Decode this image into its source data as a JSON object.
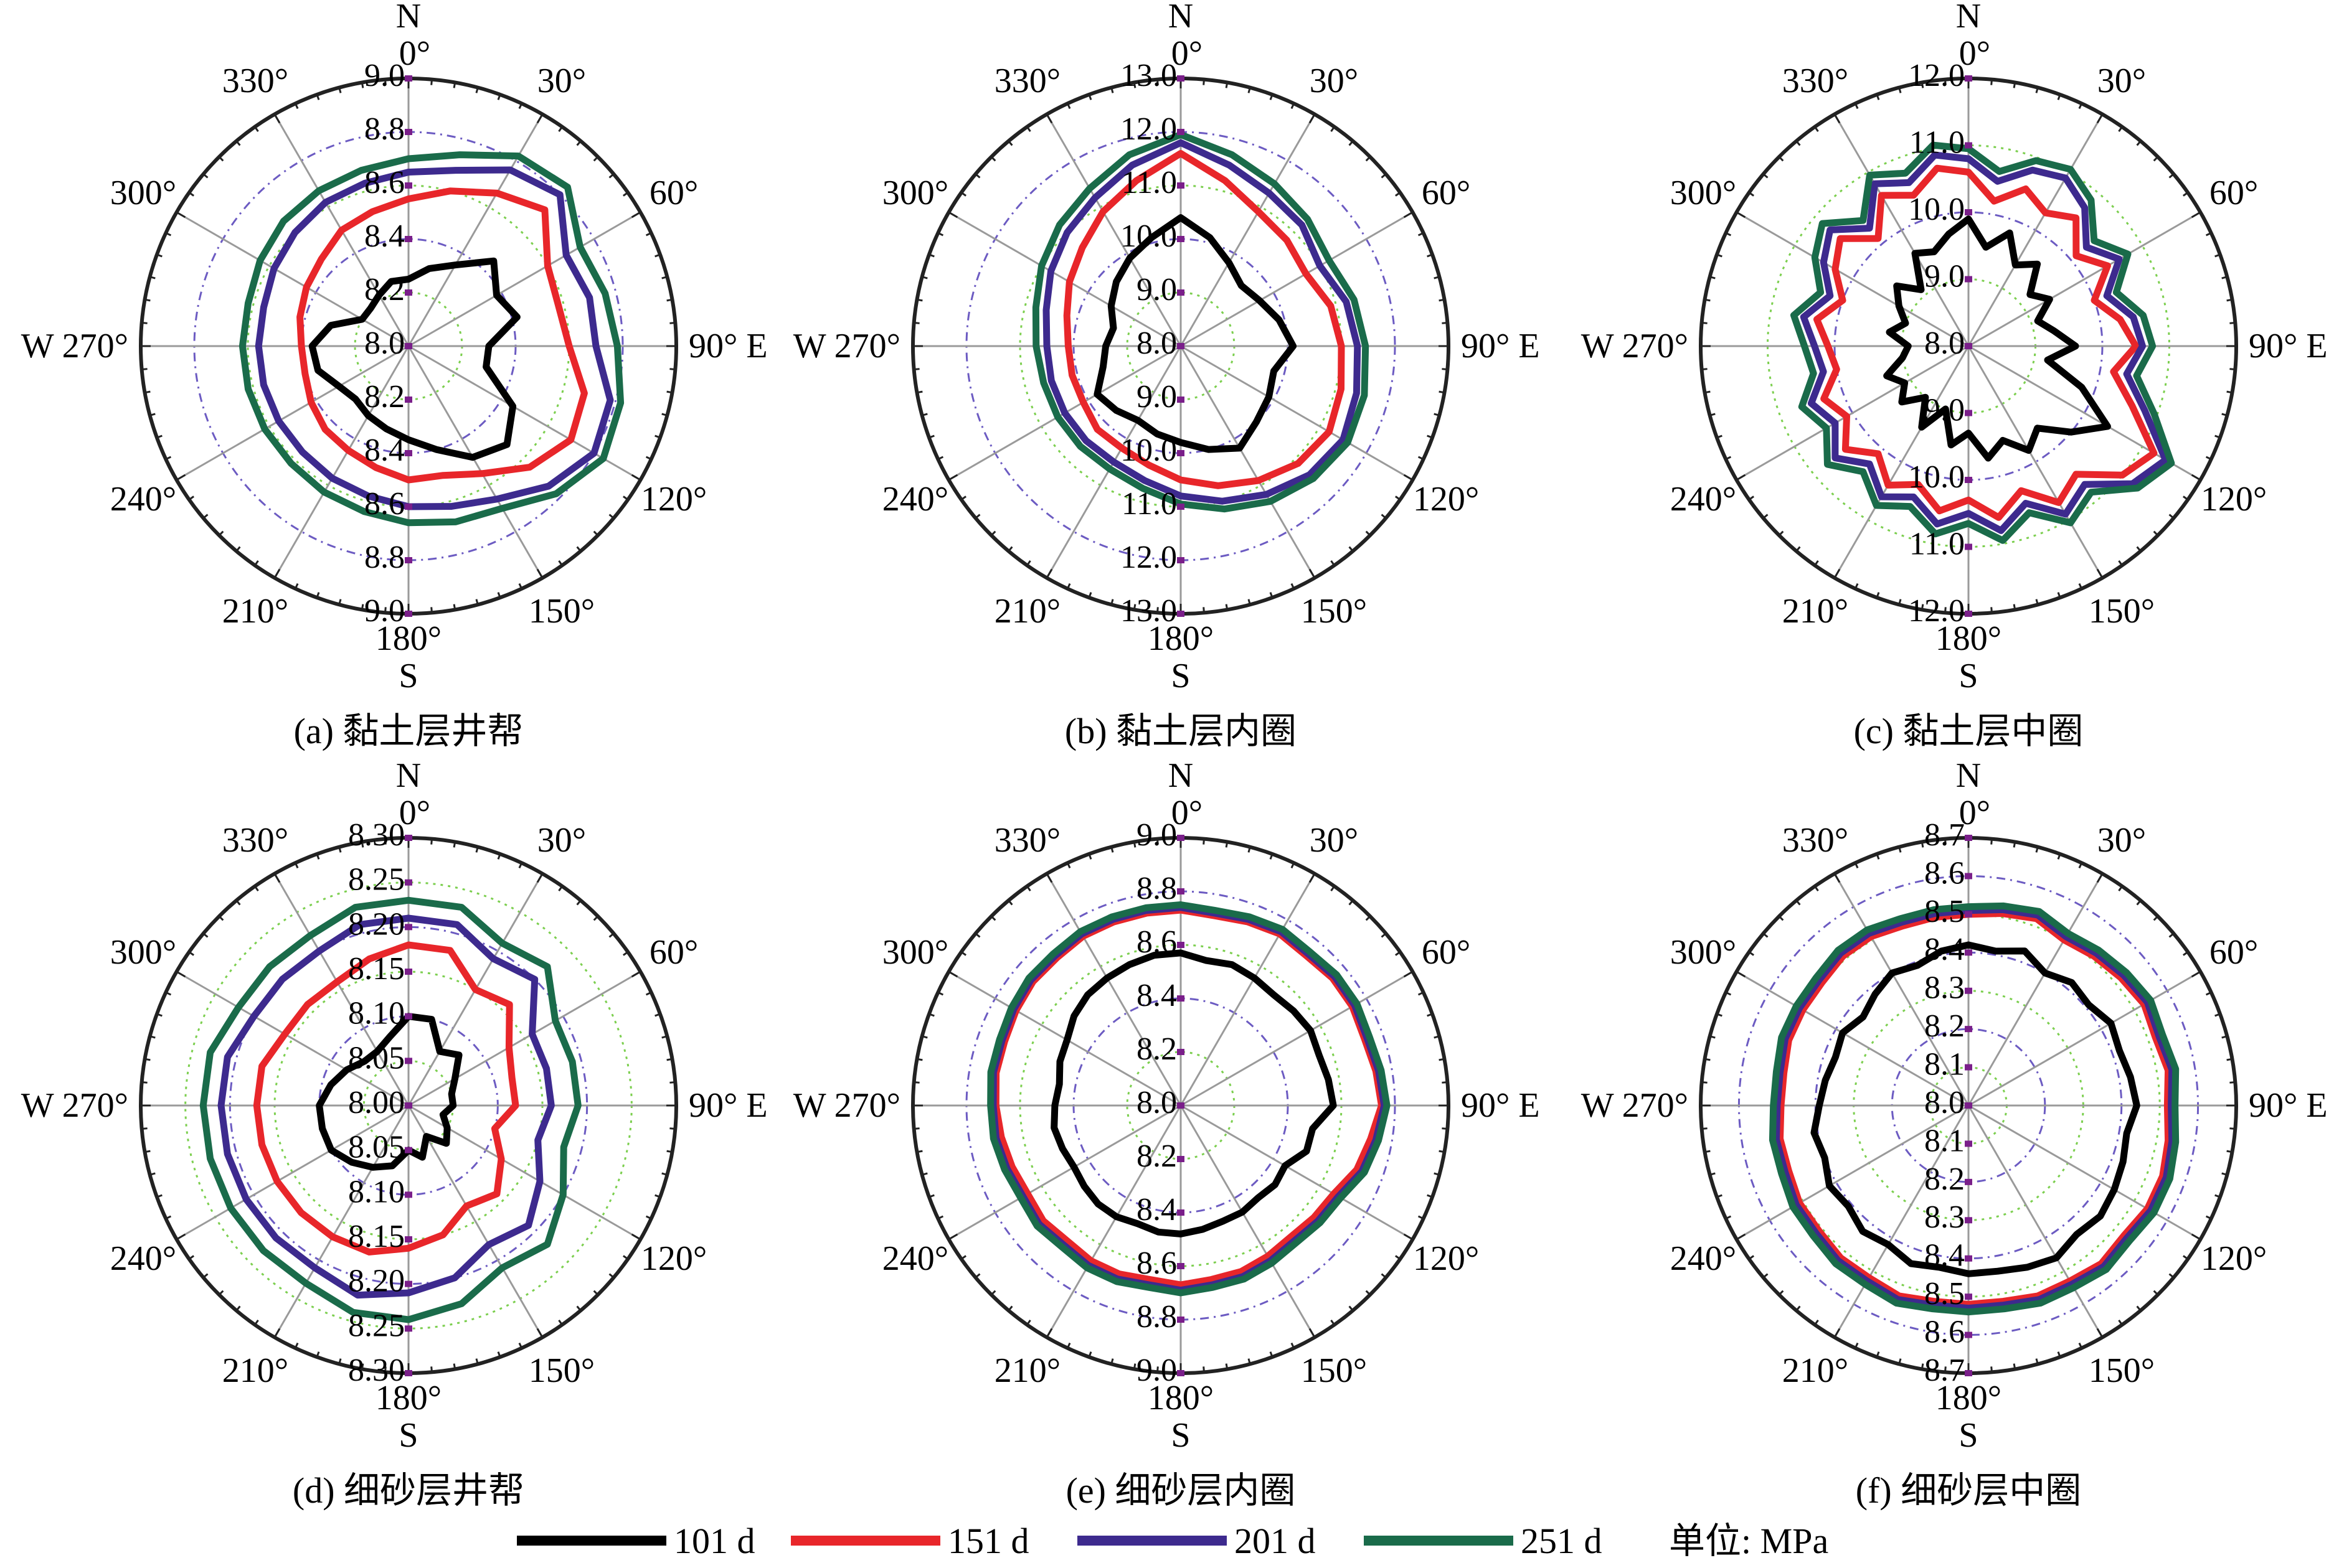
{
  "legend": {
    "items": [
      {
        "label": "101 d",
        "color": "#000000"
      },
      {
        "label": "151 d",
        "color": "#e8262a"
      },
      {
        "label": "201 d",
        "color": "#3d2a8e"
      },
      {
        "label": "251 d",
        "color": "#1a6b4a"
      }
    ],
    "unit_label": "单位: MPa"
  },
  "chart_data": [
    {
      "type": "polar-line",
      "caption": "(a) 黏土层井帮",
      "center_value": "8.0",
      "ring_labels": [
        "8.2",
        "8.4",
        "8.6",
        "8.8",
        "9.0"
      ],
      "angle_unit": "°",
      "rlim": [
        8.0,
        9.0
      ],
      "angle_labels": [
        "0°",
        "30°",
        "60°",
        "90°",
        "120°",
        "150°",
        "180°",
        "210°",
        "240°",
        "270°",
        "300°",
        "330°"
      ],
      "compass": {
        "N": "N",
        "E": "E",
        "S": "S",
        "W": "W"
      },
      "series": [
        {
          "name": "101 d",
          "values": [
            8.25,
            8.3,
            8.35,
            8.45,
            8.38,
            8.42,
            8.3,
            8.3,
            8.45,
            8.52,
            8.48,
            8.4,
            8.35,
            8.32,
            8.3,
            8.28,
            8.3,
            8.35,
            8.36,
            8.3,
            8.2,
            8.2,
            8.22,
            8.25
          ]
        },
        {
          "name": "151 d",
          "values": [
            8.55,
            8.6,
            8.66,
            8.72,
            8.6,
            8.58,
            8.6,
            8.68,
            8.7,
            8.64,
            8.55,
            8.5,
            8.5,
            8.47,
            8.45,
            8.44,
            8.42,
            8.4,
            8.4,
            8.42,
            8.44,
            8.46,
            8.5,
            8.52
          ]
        },
        {
          "name": "201 d",
          "values": [
            8.65,
            8.68,
            8.76,
            8.8,
            8.68,
            8.7,
            8.7,
            8.78,
            8.8,
            8.74,
            8.66,
            8.62,
            8.6,
            8.58,
            8.57,
            8.56,
            8.56,
            8.56,
            8.56,
            8.56,
            8.58,
            8.6,
            8.62,
            8.63
          ]
        },
        {
          "name": "251 d",
          "values": [
            8.7,
            8.74,
            8.82,
            8.84,
            8.74,
            8.76,
            8.78,
            8.82,
            8.84,
            8.78,
            8.7,
            8.68,
            8.66,
            8.64,
            8.63,
            8.62,
            8.62,
            8.62,
            8.62,
            8.62,
            8.64,
            8.66,
            8.67,
            8.68
          ]
        }
      ]
    },
    {
      "type": "polar-line",
      "caption": "(b) 黏土层内圈",
      "center_value": "8.0",
      "ring_labels": [
        "9.0",
        "10.0",
        "11.0",
        "12.0",
        "13.0"
      ],
      "angle_unit": "°",
      "rlim": [
        8.0,
        13.0
      ],
      "angle_labels": [
        "0°",
        "30°",
        "60°",
        "90°",
        "120°",
        "150°",
        "180°",
        "210°",
        "240°",
        "270°",
        "300°",
        "330°"
      ],
      "compass": {
        "N": "N",
        "E": "E",
        "S": "S",
        "W": "W"
      },
      "series": [
        {
          "name": "101 d",
          "values": [
            10.4,
            10.1,
            9.8,
            9.6,
            9.7,
            9.9,
            10.1,
            9.8,
            9.9,
            10.0,
            10.2,
            10.0,
            9.8,
            9.7,
            9.6,
            9.7,
            9.8,
            9.5,
            9.4,
            9.3,
            9.5,
            9.7,
            9.9,
            10.1
          ]
        },
        {
          "name": "151 d",
          "values": [
            11.6,
            11.2,
            10.9,
            10.8,
            10.7,
            10.9,
            11.0,
            11.1,
            11.2,
            11.1,
            10.9,
            10.7,
            10.5,
            10.3,
            10.2,
            10.2,
            10.1,
            10.1,
            10.1,
            10.2,
            10.4,
            10.6,
            10.9,
            11.2
          ]
        },
        {
          "name": "201 d",
          "values": [
            11.8,
            11.5,
            11.3,
            11.2,
            11.0,
            11.2,
            11.3,
            11.4,
            11.5,
            11.4,
            11.2,
            11.0,
            10.8,
            10.6,
            10.5,
            10.5,
            10.5,
            10.5,
            10.5,
            10.6,
            10.8,
            11.0,
            11.2,
            11.5
          ]
        },
        {
          "name": "251 d",
          "values": [
            11.95,
            11.7,
            11.5,
            11.35,
            11.2,
            11.35,
            11.45,
            11.55,
            11.6,
            11.5,
            11.35,
            11.15,
            10.95,
            10.75,
            10.65,
            10.65,
            10.65,
            10.65,
            10.7,
            10.8,
            11.0,
            11.2,
            11.4,
            11.7
          ]
        }
      ]
    },
    {
      "type": "polar-line",
      "caption": "(c) 黏土层中圈",
      "center_value": "8.0",
      "ring_labels": [
        "9.0",
        "10.0",
        "11.0",
        "12.0"
      ],
      "angle_unit": "°",
      "rlim": [
        8.0,
        12.0
      ],
      "angle_labels": [
        "0°",
        "30°",
        "60°",
        "90°",
        "120°",
        "150°",
        "180°",
        "210°",
        "240°",
        "270°",
        "300°",
        "330°"
      ],
      "compass": {
        "N": "N",
        "E": "E",
        "S": "S",
        "W": "W"
      },
      "series": [
        {
          "name": "101 d",
          "values": [
            9.9,
            9.5,
            9.8,
            9.4,
            9.6,
            9.2,
            9.4,
            9.1,
            9.3,
            9.6,
            9.2,
            9.8,
            10.4,
            10.0,
            9.6,
            9.8,
            9.5,
            9.7,
            9.3,
            9.5,
            9.0,
            9.4,
            9.0,
            9.3,
            9.1,
            9.3,
            9.0,
            8.9,
            9.2,
            9.0,
            9.2,
            9.4,
            9.1,
            9.6,
            9.5,
            9.7
          ]
        },
        {
          "name": "151 d",
          "values": [
            10.6,
            10.2,
            10.5,
            10.3,
            10.5,
            10.1,
            10.4,
            10.0,
            10.3,
            10.5,
            10.2,
            10.6,
            11.2,
            11.0,
            10.5,
            10.7,
            10.3,
            10.6,
            10.3,
            10.5,
            10.2,
            10.4,
            10.1,
            10.4,
            10.1,
            10.3,
            10.0,
            10.1,
            10.3,
            10.0,
            10.3,
            10.5,
            10.1,
            10.6,
            10.4,
            10.7
          ]
        },
        {
          "name": "201 d",
          "values": [
            10.8,
            10.5,
            10.8,
            10.9,
            10.7,
            10.3,
            10.6,
            10.2,
            10.5,
            10.6,
            10.4,
            10.8,
            11.4,
            11.2,
            10.7,
            10.9,
            10.5,
            10.8,
            10.5,
            10.7,
            10.4,
            10.6,
            10.3,
            10.6,
            10.3,
            10.5,
            10.2,
            10.3,
            10.5,
            10.2,
            10.5,
            10.7,
            10.3,
            10.8,
            10.6,
            10.9
          ]
        },
        {
          "name": "251 d",
          "values": [
            10.95,
            10.65,
            10.95,
            11.05,
            10.85,
            10.45,
            10.75,
            10.35,
            10.65,
            10.75,
            10.55,
            10.95,
            11.5,
            11.3,
            10.85,
            11.05,
            10.65,
            10.95,
            10.65,
            10.85,
            10.55,
            10.75,
            10.45,
            10.75,
            10.45,
            10.65,
            10.35,
            10.45,
            10.65,
            10.35,
            10.65,
            10.85,
            10.45,
            10.95,
            10.75,
            11.05
          ]
        }
      ]
    },
    {
      "type": "polar-line",
      "caption": "(d) 细砂层井帮",
      "center_value": "8.00",
      "ring_labels": [
        "8.05",
        "8.10",
        "8.15",
        "8.20",
        "8.25",
        "8.30"
      ],
      "angle_unit": "°",
      "rlim": [
        8.0,
        8.3
      ],
      "angle_labels": [
        "0°",
        "30°",
        "60°",
        "90°",
        "120°",
        "150°",
        "180°",
        "210°",
        "240°",
        "270°",
        "300°",
        "330°"
      ],
      "compass": {
        "N": "N",
        "E": "E",
        "S": "S",
        "W": "W"
      },
      "series": [
        {
          "name": "101 d",
          "values": [
            8.1,
            8.1,
            8.07,
            8.08,
            8.06,
            8.05,
            8.05,
            8.04,
            8.05,
            8.06,
            8.04,
            8.06,
            8.05,
            8.07,
            8.08,
            8.09,
            8.1,
            8.1,
            8.1,
            8.09,
            8.08,
            8.07,
            8.07,
            8.08
          ]
        },
        {
          "name": "151 d",
          "values": [
            8.18,
            8.18,
            8.15,
            8.16,
            8.13,
            8.12,
            8.12,
            8.1,
            8.12,
            8.14,
            8.13,
            8.15,
            8.16,
            8.17,
            8.17,
            8.17,
            8.17,
            8.17,
            8.17,
            8.17,
            8.16,
            8.16,
            8.16,
            8.17
          ]
        },
        {
          "name": "201 d",
          "values": [
            8.21,
            8.21,
            8.19,
            8.2,
            8.16,
            8.16,
            8.16,
            8.15,
            8.17,
            8.19,
            8.18,
            8.2,
            8.21,
            8.22,
            8.21,
            8.21,
            8.21,
            8.21,
            8.21,
            8.21,
            8.2,
            8.2,
            8.2,
            8.21
          ]
        },
        {
          "name": "251 d",
          "values": [
            8.23,
            8.23,
            8.21,
            8.22,
            8.19,
            8.19,
            8.19,
            8.18,
            8.2,
            8.22,
            8.21,
            8.23,
            8.24,
            8.24,
            8.23,
            8.23,
            8.23,
            8.23,
            8.23,
            8.23,
            8.22,
            8.22,
            8.22,
            8.23
          ]
        }
      ]
    },
    {
      "type": "polar-line",
      "caption": "(e) 细砂层内圈",
      "center_value": "8.0",
      "ring_labels": [
        "8.2",
        "8.4",
        "8.6",
        "8.8",
        "9.0"
      ],
      "angle_unit": "°",
      "rlim": [
        8.0,
        9.0
      ],
      "angle_labels": [
        "0°",
        "30°",
        "60°",
        "90°",
        "120°",
        "150°",
        "180°",
        "210°",
        "240°",
        "270°",
        "300°",
        "330°"
      ],
      "compass": {
        "N": "N",
        "E": "E",
        "S": "S",
        "W": "W"
      },
      "series": [
        {
          "name": "101 d",
          "values": [
            8.57,
            8.55,
            8.56,
            8.55,
            8.54,
            8.55,
            8.56,
            8.55,
            8.56,
            8.57,
            8.5,
            8.5,
            8.45,
            8.46,
            8.45,
            8.46,
            8.46,
            8.47,
            8.48,
            8.48,
            8.47,
            8.48,
            8.48,
            8.47,
            8.46,
            8.47,
            8.48,
            8.47,
            8.46,
            8.48,
            8.49,
            8.52,
            8.54,
            8.55,
            8.56,
            8.57
          ]
        },
        {
          "name": "151 d",
          "values": [
            8.73,
            8.72,
            8.73,
            8.74,
            8.73,
            8.74,
            8.74,
            8.73,
            8.74,
            8.75,
            8.72,
            8.7,
            8.66,
            8.65,
            8.64,
            8.65,
            8.66,
            8.66,
            8.67,
            8.66,
            8.67,
            8.67,
            8.66,
            8.67,
            8.66,
            8.67,
            8.68,
            8.69,
            8.7,
            8.7,
            8.71,
            8.72,
            8.72,
            8.73,
            8.73,
            8.73
          ]
        },
        {
          "name": "201 d",
          "values": [
            8.74,
            8.73,
            8.74,
            8.75,
            8.74,
            8.75,
            8.75,
            8.74,
            8.75,
            8.76,
            8.74,
            8.72,
            8.68,
            8.67,
            8.66,
            8.67,
            8.68,
            8.68,
            8.69,
            8.68,
            8.69,
            8.69,
            8.68,
            8.69,
            8.68,
            8.69,
            8.7,
            8.7,
            8.71,
            8.71,
            8.72,
            8.73,
            8.73,
            8.74,
            8.74,
            8.74
          ]
        },
        {
          "name": "251 d",
          "values": [
            8.75,
            8.74,
            8.75,
            8.76,
            8.75,
            8.76,
            8.76,
            8.75,
            8.76,
            8.77,
            8.75,
            8.73,
            8.69,
            8.68,
            8.67,
            8.68,
            8.69,
            8.69,
            8.7,
            8.69,
            8.7,
            8.7,
            8.69,
            8.7,
            8.69,
            8.7,
            8.71,
            8.71,
            8.72,
            8.72,
            8.73,
            8.74,
            8.74,
            8.75,
            8.75,
            8.75
          ]
        }
      ]
    },
    {
      "type": "polar-line",
      "caption": "(f) 细砂层中圈",
      "center_value": "8.0",
      "ring_labels": [
        "8.1",
        "8.2",
        "8.3",
        "8.4",
        "8.5",
        "8.6",
        "8.7"
      ],
      "angle_unit": "°",
      "rlim": [
        8.0,
        8.7
      ],
      "angle_labels": [
        "0°",
        "30°",
        "60°",
        "90°",
        "120°",
        "150°",
        "180°",
        "210°",
        "240°",
        "270°",
        "300°",
        "330°"
      ],
      "compass": {
        "N": "N",
        "E": "E",
        "S": "S",
        "W": "W"
      },
      "series": [
        {
          "name": "101 d",
          "values": [
            8.42,
            8.41,
            8.43,
            8.4,
            8.42,
            8.41,
            8.43,
            8.42,
            8.43,
            8.44,
            8.42,
            8.43,
            8.44,
            8.45,
            8.44,
            8.46,
            8.45,
            8.44,
            8.44,
            8.43,
            8.44,
            8.42,
            8.43,
            8.41,
            8.42,
            8.4,
            8.41,
            8.39,
            8.38,
            8.37,
            8.38,
            8.36,
            8.38,
            8.4,
            8.39,
            8.41
          ]
        },
        {
          "name": "151 d",
          "values": [
            8.5,
            8.51,
            8.52,
            8.5,
            8.51,
            8.52,
            8.53,
            8.52,
            8.53,
            8.52,
            8.53,
            8.54,
            8.54,
            8.53,
            8.54,
            8.53,
            8.53,
            8.52,
            8.52,
            8.52,
            8.53,
            8.52,
            8.52,
            8.51,
            8.51,
            8.5,
            8.5,
            8.49,
            8.49,
            8.5,
            8.5,
            8.5,
            8.51,
            8.51,
            8.5,
            8.5
          ]
        },
        {
          "name": "201 d",
          "values": [
            8.51,
            8.52,
            8.53,
            8.51,
            8.52,
            8.53,
            8.54,
            8.53,
            8.54,
            8.53,
            8.54,
            8.55,
            8.55,
            8.54,
            8.55,
            8.54,
            8.54,
            8.53,
            8.53,
            8.53,
            8.54,
            8.53,
            8.53,
            8.52,
            8.52,
            8.51,
            8.51,
            8.5,
            8.5,
            8.51,
            8.51,
            8.51,
            8.52,
            8.52,
            8.51,
            8.51
          ]
        },
        {
          "name": "251 d",
          "values": [
            8.52,
            8.53,
            8.54,
            8.52,
            8.53,
            8.54,
            8.55,
            8.54,
            8.55,
            8.54,
            8.55,
            8.56,
            8.56,
            8.55,
            8.56,
            8.55,
            8.55,
            8.54,
            8.54,
            8.54,
            8.55,
            8.54,
            8.54,
            8.53,
            8.53,
            8.52,
            8.52,
            8.51,
            8.51,
            8.52,
            8.52,
            8.52,
            8.53,
            8.53,
            8.52,
            8.52
          ]
        }
      ]
    }
  ]
}
